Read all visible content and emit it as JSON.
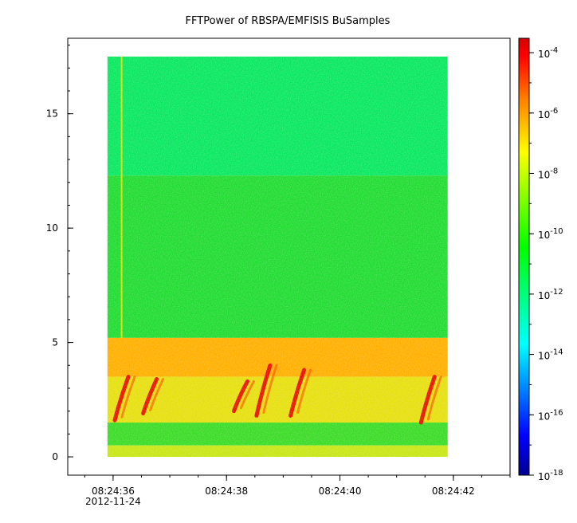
{
  "chart_data": {
    "type": "heatmap",
    "title": "FFTPower of RBSPA/EMFISIS  BuSamples",
    "x_axis": {
      "range": [
        "2012-11-24 08:24:35.2",
        "2012-11-24 08:24:43.0"
      ],
      "ticks": [
        {
          "value": "08:24:36",
          "date_label": "2012-11-24"
        },
        {
          "value": "08:24:38"
        },
        {
          "value": "08:24:40"
        },
        {
          "value": "08:24:42"
        }
      ],
      "minor_tick_step_seconds": 0.5
    },
    "y_axis": {
      "range": [
        -0.8,
        18.3
      ],
      "ticks": [
        0,
        5,
        10,
        15
      ],
      "minor_tick_step": 1
    },
    "data_extent": {
      "time_start": "08:24:35.9",
      "time_end": "08:24:41.9",
      "y_min": 0,
      "y_max": 17.5
    },
    "colorbar": {
      "scale": "log",
      "range": [
        "1e-18",
        "3e-4"
      ],
      "ticks": [
        {
          "base": "10",
          "exp": "-4"
        },
        {
          "base": "10",
          "exp": "-6"
        },
        {
          "base": "10",
          "exp": "-8"
        },
        {
          "base": "10",
          "exp": "-10"
        },
        {
          "base": "10",
          "exp": "-12"
        },
        {
          "base": "10",
          "exp": "-14"
        },
        {
          "base": "10",
          "exp": "-16"
        },
        {
          "base": "10",
          "exp": "-18"
        }
      ],
      "colors": [
        "#00008f",
        "#0000ff",
        "#00ffff",
        "#00ff00",
        "#ffff00",
        "#ff8000",
        "#ff0000",
        "#d00000"
      ]
    },
    "bands": [
      {
        "y_from": 12.3,
        "y_to": 17.5,
        "level": "1e-12",
        "color": "#0ae860"
      },
      {
        "y_from": 5.2,
        "y_to": 12.3,
        "level": "1e-11",
        "color": "#22dc32"
      },
      {
        "y_from": 3.5,
        "y_to": 5.2,
        "level": "1e-7",
        "color": "#ffb000"
      },
      {
        "y_from": 1.5,
        "y_to": 3.5,
        "level": "1e-8",
        "color": "#e6e010"
      },
      {
        "y_from": 0.5,
        "y_to": 1.5,
        "level": "1e-10",
        "color": "#3cdc28"
      },
      {
        "y_from": 0,
        "y_to": 0.5,
        "level": "1e-9",
        "color": "#c8e616"
      }
    ],
    "bursts": [
      {
        "time": "08:24:36.1",
        "y_from": 1.6,
        "y_to": 3.5
      },
      {
        "time": "08:24:36.6",
        "y_from": 1.9,
        "y_to": 3.4
      },
      {
        "time": "08:24:38.2",
        "y_from": 2.0,
        "y_to": 3.3
      },
      {
        "time": "08:24:38.6",
        "y_from": 1.8,
        "y_to": 4.0
      },
      {
        "time": "08:24:39.2",
        "y_from": 1.8,
        "y_to": 3.8
      },
      {
        "time": "08:24:41.5",
        "y_from": 1.5,
        "y_to": 3.5
      }
    ],
    "interference_line": {
      "time": "08:24:36.15",
      "y_from": 5.2,
      "y_to": 17.5
    }
  }
}
